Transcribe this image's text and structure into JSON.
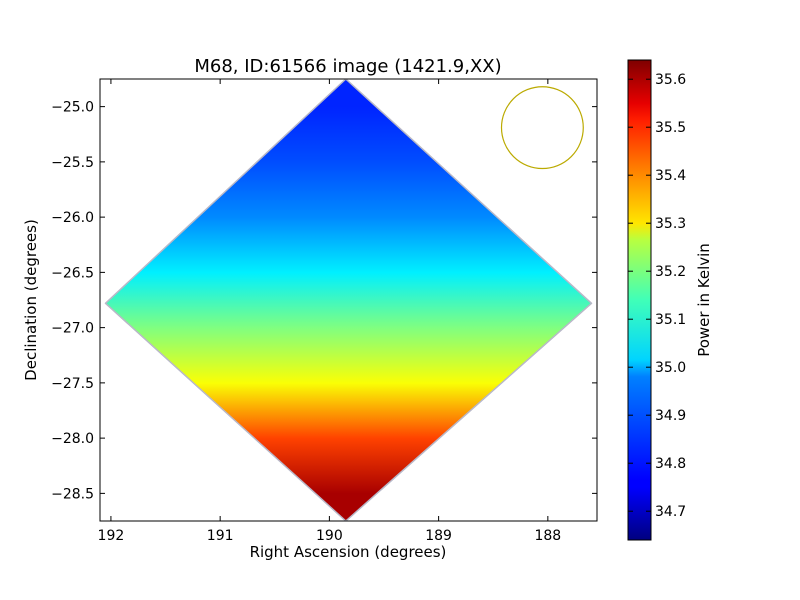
{
  "chart_data": {
    "type": "heatmap",
    "title": "M68, ID:61566 image (1421.9,XX)",
    "xlabel": "Right Ascension (degrees)",
    "ylabel": "Declination (degrees)",
    "xlim": [
      192.1,
      187.55
    ],
    "ylim": [
      -28.75,
      -24.75
    ],
    "x_ticks": [
      192,
      191,
      190,
      189,
      188
    ],
    "x_tick_labels": [
      "192",
      "191",
      "190",
      "189",
      "188"
    ],
    "y_ticks": [
      -25.0,
      -25.5,
      -26.0,
      -26.5,
      -27.0,
      -27.5,
      -28.0,
      -28.5
    ],
    "y_tick_labels": [
      "−25.0",
      "−25.5",
      "−26.0",
      "−26.5",
      "−27.0",
      "−27.5",
      "−28.0",
      "−28.5"
    ],
    "colormap": "jet",
    "colorbar": {
      "label": "Power in Kelvin",
      "min": 34.64,
      "max": 35.64,
      "ticks": [
        34.7,
        34.8,
        34.9,
        35.0,
        35.1,
        35.2,
        35.3,
        35.4,
        35.5,
        35.6
      ],
      "tick_labels": [
        "34.7",
        "34.8",
        "34.9",
        "35.0",
        "35.1",
        "35.2",
        "35.3",
        "35.4",
        "35.5",
        "35.6"
      ]
    },
    "map_footprint_corners": [
      {
        "ra": 189.85,
        "dec": -24.75
      },
      {
        "ra": 192.05,
        "dec": -26.78
      },
      {
        "ra": 189.85,
        "dec": -28.75
      },
      {
        "ra": 187.6,
        "dec": -26.78
      }
    ],
    "beam_circle": {
      "ra": 188.05,
      "dec": -25.19,
      "radius_deg": 0.37,
      "color": "#bbaa00"
    },
    "value_gradient": [
      {
        "dec": -25.0,
        "value": 34.8
      },
      {
        "dec": -25.5,
        "value": 34.84
      },
      {
        "dec": -26.0,
        "value": 34.9
      },
      {
        "dec": -26.5,
        "value": 35.0
      },
      {
        "dec": -27.0,
        "value": 35.14
      },
      {
        "dec": -27.5,
        "value": 35.26
      },
      {
        "dec": -28.0,
        "value": 35.45
      },
      {
        "dec": -28.5,
        "value": 35.6
      }
    ],
    "grid": false
  }
}
